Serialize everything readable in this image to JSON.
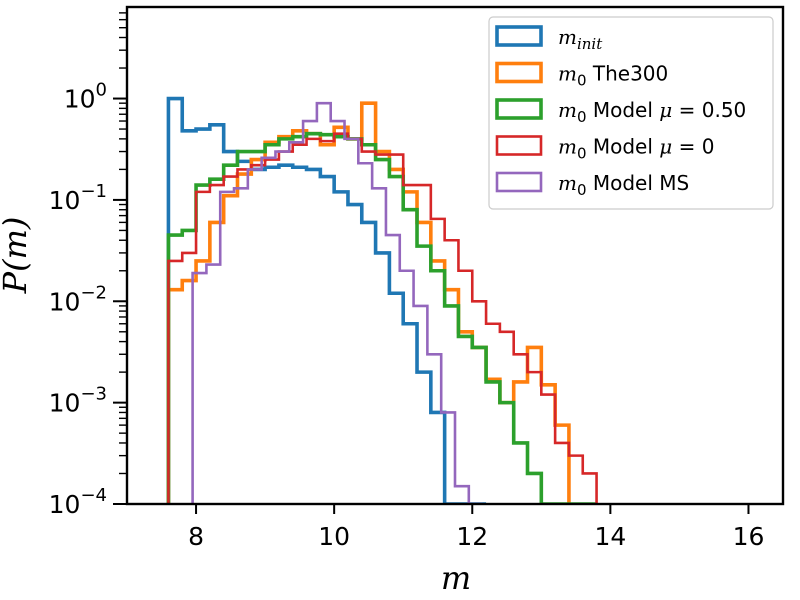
{
  "chart_data": {
    "type": "histogram",
    "xlabel": "m",
    "ylabel": "P(m)",
    "xlim": [
      7.0,
      16.5
    ],
    "ylim": [
      0.0001,
      8.0
    ],
    "yscale": "log",
    "grid": false,
    "legend_position": "top-right",
    "x_ticks": [
      {
        "value": 8,
        "label": "8"
      },
      {
        "value": 10,
        "label": "10"
      },
      {
        "value": 12,
        "label": "12"
      },
      {
        "value": 14,
        "label": "14"
      },
      {
        "value": 16,
        "label": "16"
      }
    ],
    "y_ticks": [
      {
        "value": 0.0001,
        "base": "10",
        "exp": "−4"
      },
      {
        "value": 0.001,
        "base": "10",
        "exp": "−3"
      },
      {
        "value": 0.01,
        "base": "10",
        "exp": "−2"
      },
      {
        "value": 0.1,
        "base": "10",
        "exp": "−1"
      },
      {
        "value": 1,
        "base": "10",
        "exp": "0"
      }
    ],
    "series": [
      {
        "name": "m_init",
        "legend_parts": [
          {
            "t": "m",
            "s": "i"
          },
          {
            "t": "init",
            "s": "i-sub"
          }
        ],
        "color": "#1f77b4",
        "edges": [
          7.6,
          7.8,
          8.0,
          8.2,
          8.4,
          8.6,
          8.8,
          9.0,
          9.2,
          9.4,
          9.6,
          9.8,
          10.0,
          10.2,
          10.4,
          10.6,
          10.8,
          11.0,
          11.2,
          11.4,
          11.6,
          11.8,
          12.0,
          12.2
        ],
        "values": [
          1.0,
          0.48,
          0.5,
          0.55,
          0.3,
          0.24,
          0.2,
          0.21,
          0.22,
          0.21,
          0.2,
          0.17,
          0.12,
          0.09,
          0.06,
          0.03,
          0.012,
          0.006,
          0.002,
          0.0008,
          0.0001,
          0.0001,
          0.0001
        ]
      },
      {
        "name": "m_0 The300",
        "legend_parts": [
          {
            "t": "m",
            "s": "i"
          },
          {
            "t": "0",
            "s": "sub"
          },
          {
            "t": " The300",
            "s": "n"
          }
        ],
        "color": "#ff7f0e",
        "edges": [
          7.6,
          7.8,
          8.0,
          8.2,
          8.4,
          8.6,
          8.8,
          9.0,
          9.2,
          9.4,
          9.6,
          9.8,
          10.0,
          10.2,
          10.4,
          10.6,
          10.8,
          11.0,
          11.2,
          11.4,
          11.6,
          11.8,
          12.0,
          12.2,
          12.4,
          12.6,
          12.8,
          13.0,
          13.2,
          13.4
        ],
        "values": [
          0.013,
          0.016,
          0.025,
          0.06,
          0.11,
          0.18,
          0.25,
          0.37,
          0.42,
          0.48,
          0.45,
          0.35,
          0.52,
          0.4,
          0.9,
          0.3,
          0.2,
          0.12,
          0.06,
          0.025,
          0.013,
          0.005,
          0.0035,
          0.0017,
          0.001,
          0.0016,
          0.0035,
          0.0015,
          0.0006
        ]
      },
      {
        "name": "m_0 Model mu=0.50",
        "legend_parts": [
          {
            "t": "m",
            "s": "i"
          },
          {
            "t": "0",
            "s": "sub"
          },
          {
            "t": " Model ",
            "s": "n"
          },
          {
            "t": "μ",
            "s": "i"
          },
          {
            "t": " = 0.50",
            "s": "n"
          }
        ],
        "color": "#2ca02c",
        "edges": [
          7.6,
          7.8,
          8.0,
          8.2,
          8.4,
          8.6,
          8.8,
          9.0,
          9.2,
          9.4,
          9.6,
          9.8,
          10.0,
          10.2,
          10.4,
          10.6,
          10.8,
          11.0,
          11.2,
          11.4,
          11.6,
          11.8,
          12.0,
          12.2,
          12.4,
          12.6,
          12.8,
          13.0,
          13.4,
          13.8
        ],
        "values": [
          0.045,
          0.05,
          0.14,
          0.16,
          0.22,
          0.3,
          0.3,
          0.35,
          0.4,
          0.42,
          0.45,
          0.44,
          0.42,
          0.4,
          0.35,
          0.25,
          0.17,
          0.08,
          0.035,
          0.02,
          0.009,
          0.0045,
          0.0035,
          0.0016,
          0.001,
          0.0004,
          0.0002,
          0.0001,
          0.0001
        ]
      },
      {
        "name": "m_0 Model mu=0",
        "legend_parts": [
          {
            "t": "m",
            "s": "i"
          },
          {
            "t": "0",
            "s": "sub"
          },
          {
            "t": " Model ",
            "s": "n"
          },
          {
            "t": "μ",
            "s": "i"
          },
          {
            "t": " = 0",
            "s": "n"
          }
        ],
        "color": "#d62728",
        "edges": [
          7.6,
          7.8,
          8.0,
          8.2,
          8.4,
          8.6,
          8.8,
          9.0,
          9.2,
          9.4,
          9.6,
          9.8,
          10.0,
          10.2,
          10.4,
          10.6,
          10.8,
          11.0,
          11.2,
          11.4,
          11.6,
          11.8,
          12.0,
          12.2,
          12.4,
          12.6,
          12.8,
          13.0,
          13.2,
          13.4,
          13.6,
          13.8
        ],
        "values": [
          0.025,
          0.03,
          0.12,
          0.14,
          0.17,
          0.2,
          0.22,
          0.25,
          0.3,
          0.35,
          0.4,
          0.38,
          0.45,
          0.4,
          0.3,
          0.28,
          0.28,
          0.14,
          0.14,
          0.065,
          0.04,
          0.02,
          0.01,
          0.006,
          0.005,
          0.003,
          0.002,
          0.0012,
          0.0004,
          0.0003,
          0.0002
        ]
      },
      {
        "name": "m_0 Model MS",
        "legend_parts": [
          {
            "t": "m",
            "s": "i"
          },
          {
            "t": "0",
            "s": "sub"
          },
          {
            "t": " Model MS",
            "s": "n"
          }
        ],
        "color": "#9467bd",
        "edges": [
          7.95,
          8.15,
          8.35,
          8.55,
          8.75,
          8.95,
          9.15,
          9.35,
          9.55,
          9.75,
          9.95,
          10.15,
          10.35,
          10.55,
          10.75,
          10.95,
          11.15,
          11.35,
          11.55,
          11.75,
          11.95,
          12.15
        ],
        "values": [
          0.019,
          0.023,
          0.12,
          0.13,
          0.2,
          0.26,
          0.3,
          0.37,
          0.6,
          0.9,
          0.6,
          0.4,
          0.23,
          0.13,
          0.045,
          0.02,
          0.009,
          0.003,
          0.0008,
          0.00015,
          0.0001
        ]
      }
    ]
  }
}
